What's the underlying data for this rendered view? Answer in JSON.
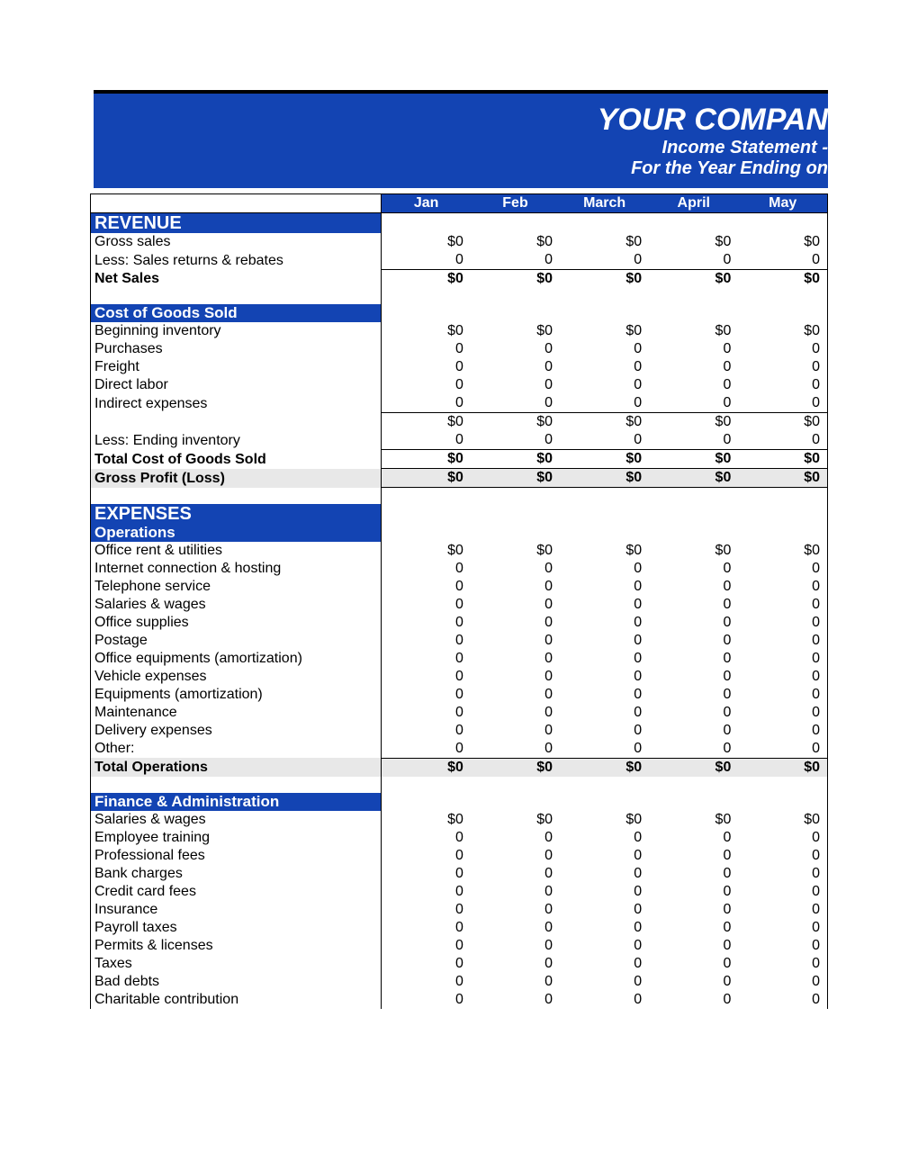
{
  "colors": {
    "header_bg": "#1344b3",
    "header_text": "#ffffff",
    "shaded_bg": "#e8e8e8",
    "text": "#000000",
    "border": "#000000",
    "page_bg": "#ffffff"
  },
  "header": {
    "company": "YOUR COMPAN",
    "line1": "Income Statement -",
    "line2": "For the Year Ending on"
  },
  "months": [
    "Jan",
    "Feb",
    "March",
    "April",
    "May"
  ],
  "sections": {
    "revenue": {
      "title": "REVENUE",
      "rows": [
        {
          "label": "Gross sales",
          "values": [
            "$0",
            "$0",
            "$0",
            "$0",
            "$0"
          ]
        },
        {
          "label": "Less: Sales returns & rebates",
          "values": [
            "0",
            "0",
            "0",
            "0",
            "0"
          ],
          "underline_after": true
        }
      ],
      "net_sales": {
        "label": "Net Sales",
        "values": [
          "$0",
          "$0",
          "$0",
          "$0",
          "$0"
        ]
      }
    },
    "cogs": {
      "title": "Cost of Goods Sold",
      "rows": [
        {
          "label": "Beginning inventory",
          "values": [
            "$0",
            "$0",
            "$0",
            "$0",
            "$0"
          ]
        },
        {
          "label": "Purchases",
          "values": [
            "0",
            "0",
            "0",
            "0",
            "0"
          ]
        },
        {
          "label": "Freight",
          "values": [
            "0",
            "0",
            "0",
            "0",
            "0"
          ]
        },
        {
          "label": "Direct labor",
          "values": [
            "0",
            "0",
            "0",
            "0",
            "0"
          ]
        },
        {
          "label": "Indirect expenses",
          "values": [
            "0",
            "0",
            "0",
            "0",
            "0"
          ]
        }
      ],
      "subtotal": {
        "label": "",
        "values": [
          "$0",
          "$0",
          "$0",
          "$0",
          "$0"
        ]
      },
      "less_ending": {
        "label": "Less: Ending inventory",
        "values": [
          "0",
          "0",
          "0",
          "0",
          "0"
        ]
      },
      "total": {
        "label": "Total Cost of Goods Sold",
        "values": [
          "$0",
          "$0",
          "$0",
          "$0",
          "$0"
        ]
      },
      "gross_profit": {
        "label": "Gross Profit (Loss)",
        "values": [
          "$0",
          "$0",
          "$0",
          "$0",
          "$0"
        ]
      }
    },
    "expenses": {
      "title": "EXPENSES",
      "operations": {
        "title": "Operations",
        "rows": [
          {
            "label": "Office rent & utilities",
            "values": [
              "$0",
              "$0",
              "$0",
              "$0",
              "$0"
            ]
          },
          {
            "label": "Internet connection & hosting",
            "values": [
              "0",
              "0",
              "0",
              "0",
              "0"
            ]
          },
          {
            "label": "Telephone service",
            "values": [
              "0",
              "0",
              "0",
              "0",
              "0"
            ]
          },
          {
            "label": "Salaries & wages",
            "values": [
              "0",
              "0",
              "0",
              "0",
              "0"
            ]
          },
          {
            "label": "Office supplies",
            "values": [
              "0",
              "0",
              "0",
              "0",
              "0"
            ]
          },
          {
            "label": "Postage",
            "values": [
              "0",
              "0",
              "0",
              "0",
              "0"
            ]
          },
          {
            "label": "Office equipments (amortization)",
            "values": [
              "0",
              "0",
              "0",
              "0",
              "0"
            ]
          },
          {
            "label": "Vehicle expenses",
            "values": [
              "0",
              "0",
              "0",
              "0",
              "0"
            ]
          },
          {
            "label": "Equipments (amortization)",
            "values": [
              "0",
              "0",
              "0",
              "0",
              "0"
            ]
          },
          {
            "label": "Maintenance",
            "values": [
              "0",
              "0",
              "0",
              "0",
              "0"
            ]
          },
          {
            "label": "Delivery expenses",
            "values": [
              "0",
              "0",
              "0",
              "0",
              "0"
            ]
          },
          {
            "label": "Other:",
            "values": [
              "0",
              "0",
              "0",
              "0",
              "0"
            ]
          }
        ],
        "total": {
          "label": "Total Operations",
          "values": [
            "$0",
            "$0",
            "$0",
            "$0",
            "$0"
          ]
        }
      },
      "finance": {
        "title": "Finance & Administration",
        "rows": [
          {
            "label": "Salaries & wages",
            "values": [
              "$0",
              "$0",
              "$0",
              "$0",
              "$0"
            ]
          },
          {
            "label": "Employee training",
            "values": [
              "0",
              "0",
              "0",
              "0",
              "0"
            ]
          },
          {
            "label": "Professional fees",
            "values": [
              "0",
              "0",
              "0",
              "0",
              "0"
            ]
          },
          {
            "label": "Bank charges",
            "values": [
              "0",
              "0",
              "0",
              "0",
              "0"
            ]
          },
          {
            "label": "Credit card fees",
            "values": [
              "0",
              "0",
              "0",
              "0",
              "0"
            ]
          },
          {
            "label": "Insurance",
            "values": [
              "0",
              "0",
              "0",
              "0",
              "0"
            ]
          },
          {
            "label": "Payroll taxes",
            "values": [
              "0",
              "0",
              "0",
              "0",
              "0"
            ]
          },
          {
            "label": "Permits & licenses",
            "values": [
              "0",
              "0",
              "0",
              "0",
              "0"
            ]
          },
          {
            "label": "Taxes",
            "values": [
              "0",
              "0",
              "0",
              "0",
              "0"
            ]
          },
          {
            "label": "Bad debts",
            "values": [
              "0",
              "0",
              "0",
              "0",
              "0"
            ]
          },
          {
            "label": "Charitable contribution",
            "values": [
              "0",
              "0",
              "0",
              "0",
              "0"
            ]
          }
        ]
      }
    }
  }
}
